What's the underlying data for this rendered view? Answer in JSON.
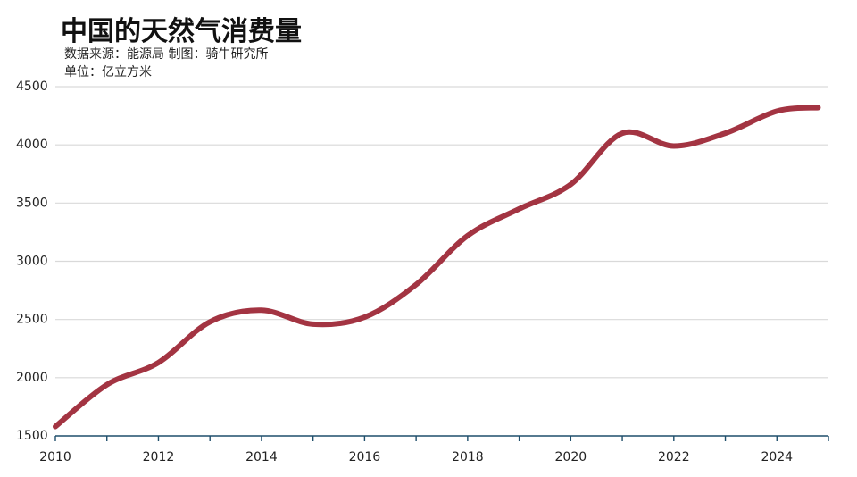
{
  "chart_data": {
    "type": "line",
    "title": "中国的天然气消费量",
    "source": "数据来源：能源局    制图：骑牛研究所",
    "unit": "单位：亿立方米",
    "xlabel": "",
    "ylabel": "",
    "xlim": [
      2010,
      2025
    ],
    "ylim": [
      1500,
      4500
    ],
    "yticks": [
      1500,
      2000,
      2500,
      3000,
      3500,
      4000,
      4500
    ],
    "xticks": [
      2010,
      2012,
      2014,
      2016,
      2018,
      2020,
      2022,
      2024
    ],
    "grid": true,
    "legend": "none",
    "colors": {
      "line": "#A33442",
      "grid": "#D9D9D9",
      "axis": "#1F4E6B"
    },
    "series": [
      {
        "x": [
          2010,
          2011,
          2012,
          2013,
          2014,
          2015,
          2016,
          2017,
          2018,
          2019,
          2020,
          2021,
          2022,
          2023,
          2024,
          2024.8
        ],
        "values": [
          1580,
          1940,
          2130,
          2480,
          2580,
          2460,
          2520,
          2800,
          3220,
          3450,
          3660,
          4100,
          3990,
          4100,
          4290,
          4320
        ]
      }
    ]
  }
}
